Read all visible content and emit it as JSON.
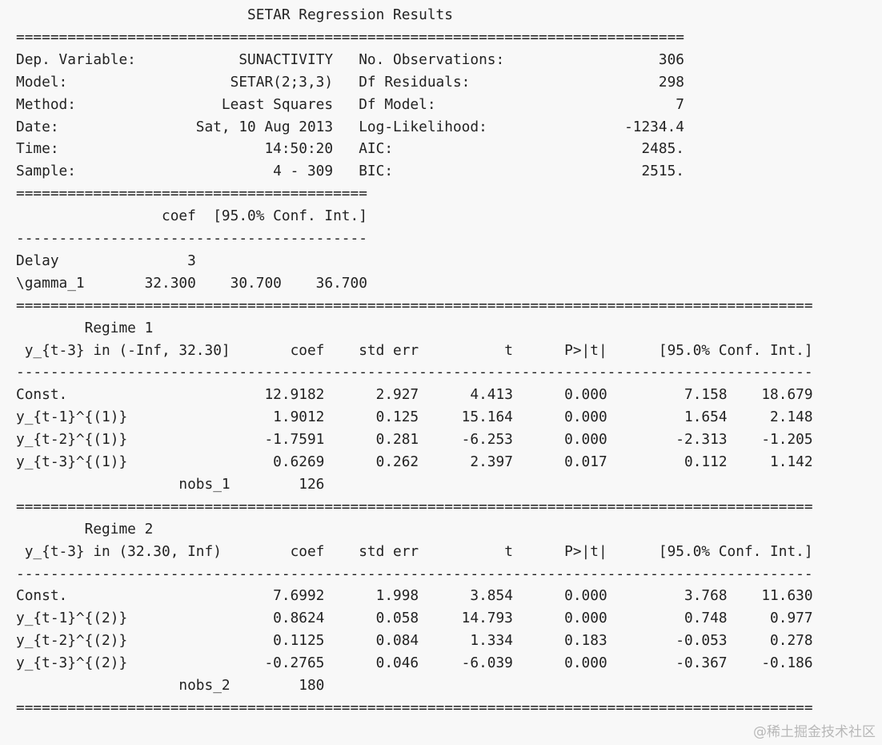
{
  "title": "SETAR Regression Results",
  "summary": {
    "left": [
      {
        "label": "Dep. Variable:",
        "value": "SUNACTIVITY"
      },
      {
        "label": "Model:",
        "value": "SETAR(2;3,3)"
      },
      {
        "label": "Method:",
        "value": "Least Squares"
      },
      {
        "label": "Date:",
        "value": "Sat, 10 Aug 2013"
      },
      {
        "label": "Time:",
        "value": "14:50:20"
      },
      {
        "label": "Sample:",
        "value": "4 - 309"
      }
    ],
    "right": [
      {
        "label": "No. Observations:",
        "value": "306"
      },
      {
        "label": "Df Residuals:",
        "value": "298"
      },
      {
        "label": "Df Model:",
        "value": "7"
      },
      {
        "label": "Log-Likelihood:",
        "value": "-1234.4"
      },
      {
        "label": "AIC:",
        "value": "2485."
      },
      {
        "label": "BIC:",
        "value": "2515."
      }
    ]
  },
  "threshold": {
    "columns": [
      "coef",
      "[95.0% Conf. Int.]"
    ],
    "rows": [
      {
        "label": "Delay",
        "values": [
          "3"
        ]
      },
      {
        "label": "\\gamma_1",
        "values": [
          "32.300",
          "30.700",
          "36.700"
        ]
      }
    ]
  },
  "regimes": [
    {
      "title": "Regime 1",
      "condition": "y_{t-3} in (-Inf, 32.30]",
      "columns": [
        "coef",
        "std err",
        "t",
        "P>|t|",
        "[95.0% Conf. Int.]"
      ],
      "rows": [
        {
          "label": "Const.",
          "values": [
            "12.9182",
            "2.927",
            "4.413",
            "0.000",
            "7.158",
            "18.679"
          ]
        },
        {
          "label": "y_{t-1}^{(1)}",
          "values": [
            "1.9012",
            "0.125",
            "15.164",
            "0.000",
            "1.654",
            "2.148"
          ]
        },
        {
          "label": "y_{t-2}^{(1)}",
          "values": [
            "-1.7591",
            "0.281",
            "-6.253",
            "0.000",
            "-2.313",
            "-1.205"
          ]
        },
        {
          "label": "y_{t-3}^{(1)}",
          "values": [
            "0.6269",
            "0.262",
            "2.397",
            "0.017",
            "0.112",
            "1.142"
          ]
        }
      ],
      "nobs_label": "nobs_1",
      "nobs": "126"
    },
    {
      "title": "Regime 2",
      "condition": "y_{t-3} in (32.30, Inf)",
      "columns": [
        "coef",
        "std err",
        "t",
        "P>|t|",
        "[95.0% Conf. Int.]"
      ],
      "rows": [
        {
          "label": "Const.",
          "values": [
            "7.6992",
            "1.998",
            "3.854",
            "0.000",
            "3.768",
            "11.630"
          ]
        },
        {
          "label": "y_{t-1}^{(2)}",
          "values": [
            "0.8624",
            "0.058",
            "14.793",
            "0.000",
            "0.748",
            "0.977"
          ]
        },
        {
          "label": "y_{t-2}^{(2)}",
          "values": [
            "0.1125",
            "0.084",
            "1.334",
            "0.183",
            "-0.053",
            "0.278"
          ]
        },
        {
          "label": "y_{t-3}^{(2)}",
          "values": [
            "-0.2765",
            "0.046",
            "-6.039",
            "0.000",
            "-0.367",
            "-0.186"
          ]
        }
      ],
      "nobs_label": "nobs_2",
      "nobs": "180"
    }
  ],
  "watermark": "@稀土掘金技术社区"
}
